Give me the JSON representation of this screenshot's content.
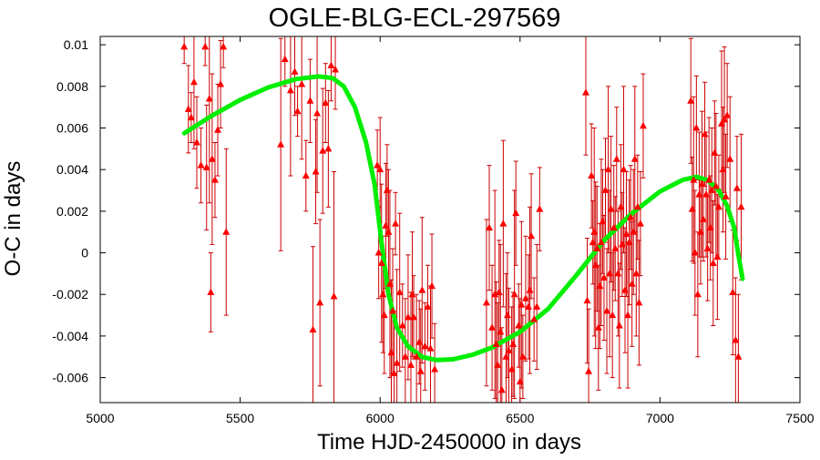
{
  "chart_data": {
    "type": "scatter",
    "title": "OGLE-BLG-ECL-297569",
    "xlabel": "Time HJD-2450000 in days",
    "ylabel": "O-C in days",
    "xlim": [
      5000,
      7500
    ],
    "ylim": [
      -0.0072,
      0.0104
    ],
    "x_ticks": [
      "5000",
      "5500",
      "6000",
      "6500",
      "7000",
      "7500"
    ],
    "y_ticks": [
      "-0.006",
      "-0.004",
      "-0.002",
      "0",
      "0.002",
      "0.004",
      "0.006",
      "0.008",
      "0.01"
    ],
    "grid": false,
    "colors": {
      "points": "#ff0000",
      "errorbars": "#cc0000",
      "fit": "#00ee00"
    },
    "series": [
      {
        "kind": "measurements",
        "points": [
          {
            "x": 5300,
            "y": 0.0099,
            "err": 0.0008
          },
          {
            "x": 5315,
            "y": 0.0069,
            "err": 0.0021
          },
          {
            "x": 5325,
            "y": 0.0065,
            "err": 0.0012
          },
          {
            "x": 5335,
            "y": 0.0082,
            "err": 0.0032
          },
          {
            "x": 5345,
            "y": 0.0053,
            "err": 0.0022
          },
          {
            "x": 5360,
            "y": 0.0042,
            "err": 0.0018
          },
          {
            "x": 5375,
            "y": 0.0099,
            "err": 0.0009
          },
          {
            "x": 5380,
            "y": 0.0041,
            "err": 0.003
          },
          {
            "x": 5390,
            "y": 0.0074,
            "err": 0.005
          },
          {
            "x": 5395,
            "y": -0.0019,
            "err": 0.0019
          },
          {
            "x": 5400,
            "y": 0.0045,
            "err": 0.0041
          },
          {
            "x": 5410,
            "y": 0.0035,
            "err": 0.0018
          },
          {
            "x": 5420,
            "y": 0.0059,
            "err": 0.0022
          },
          {
            "x": 5430,
            "y": 0.0081,
            "err": 0.0021
          },
          {
            "x": 5440,
            "y": 0.0099,
            "err": 0.001
          },
          {
            "x": 5450,
            "y": 0.001,
            "err": 0.004
          },
          {
            "x": 5645,
            "y": 0.0052,
            "err": 0.0051
          },
          {
            "x": 5660,
            "y": 0.0093,
            "err": 0.0013
          },
          {
            "x": 5680,
            "y": 0.0078,
            "err": 0.0041
          },
          {
            "x": 5695,
            "y": 0.0087,
            "err": 0.0021
          },
          {
            "x": 5705,
            "y": 0.0068,
            "err": 0.0012
          },
          {
            "x": 5720,
            "y": 0.0081,
            "err": 0.0036
          },
          {
            "x": 5735,
            "y": 0.0037,
            "err": 0.0017
          },
          {
            "x": 5750,
            "y": 0.0073,
            "err": 0.002
          },
          {
            "x": 5760,
            "y": -0.0037,
            "err": 0.004
          },
          {
            "x": 5770,
            "y": 0.0039,
            "err": 0.0025
          },
          {
            "x": 5775,
            "y": 0.0067,
            "err": 0.0038
          },
          {
            "x": 5785,
            "y": -0.0024,
            "err": 0.004
          },
          {
            "x": 5795,
            "y": 0.0049,
            "err": 0.003
          },
          {
            "x": 5805,
            "y": 0.0072,
            "err": 0.0019
          },
          {
            "x": 5815,
            "y": 0.005,
            "err": 0.0028
          },
          {
            "x": 5825,
            "y": 0.009,
            "err": 0.0017
          },
          {
            "x": 5835,
            "y": -0.0021,
            "err": 0.006
          },
          {
            "x": 5840,
            "y": 0.0088,
            "err": 0.0019
          },
          {
            "x": 5990,
            "y": 0.0042,
            "err": 0.0017
          },
          {
            "x": 5995,
            "y": 0.0,
            "err": 0.0022
          },
          {
            "x": 6000,
            "y": 0.004,
            "err": 0.0025
          },
          {
            "x": 6005,
            "y": -0.0005,
            "err": 0.0038
          },
          {
            "x": 6010,
            "y": -0.002,
            "err": 0.0028
          },
          {
            "x": 6015,
            "y": -0.003,
            "err": 0.0028
          },
          {
            "x": 6020,
            "y": 0.0013,
            "err": 0.003
          },
          {
            "x": 6025,
            "y": 0.003,
            "err": 0.0022
          },
          {
            "x": 6030,
            "y": 0.001,
            "err": 0.003
          },
          {
            "x": 6035,
            "y": -0.0015,
            "err": 0.0045
          },
          {
            "x": 6040,
            "y": -0.0048,
            "err": 0.0035
          },
          {
            "x": 6045,
            "y": -0.0028,
            "err": 0.003
          },
          {
            "x": 6050,
            "y": -0.0058,
            "err": 0.003
          },
          {
            "x": 6055,
            "y": 0.0014,
            "err": 0.0015
          },
          {
            "x": 6060,
            "y": -0.0053,
            "err": 0.0045
          },
          {
            "x": 6070,
            "y": -0.0019,
            "err": 0.0038
          },
          {
            "x": 6080,
            "y": -0.0035,
            "err": 0.002
          },
          {
            "x": 6090,
            "y": -0.005,
            "err": 0.0028
          },
          {
            "x": 6100,
            "y": -0.0031,
            "err": 0.003
          },
          {
            "x": 6110,
            "y": -0.0054,
            "err": 0.0035
          },
          {
            "x": 6115,
            "y": -0.002,
            "err": 0.003
          },
          {
            "x": 6120,
            "y": -0.0031,
            "err": 0.002
          },
          {
            "x": 6130,
            "y": -0.005,
            "err": 0.003
          },
          {
            "x": 6140,
            "y": -0.0043,
            "err": 0.002
          },
          {
            "x": 6145,
            "y": -0.0057,
            "err": 0.003
          },
          {
            "x": 6150,
            "y": -0.0018,
            "err": 0.0035
          },
          {
            "x": 6160,
            "y": -0.0045,
            "err": 0.0021
          },
          {
            "x": 6170,
            "y": -0.0026,
            "err": 0.002
          },
          {
            "x": 6180,
            "y": -0.0046,
            "err": 0.003
          },
          {
            "x": 6185,
            "y": -0.0016,
            "err": 0.0025
          },
          {
            "x": 6195,
            "y": -0.0056,
            "err": 0.0022
          },
          {
            "x": 6380,
            "y": -0.0024,
            "err": 0.004
          },
          {
            "x": 6390,
            "y": 0.0012,
            "err": 0.003
          },
          {
            "x": 6400,
            "y": -0.0036,
            "err": 0.003
          },
          {
            "x": 6410,
            "y": -0.002,
            "err": 0.005
          },
          {
            "x": 6415,
            "y": -0.0044,
            "err": 0.003
          },
          {
            "x": 6420,
            "y": -0.0054,
            "err": 0.003
          },
          {
            "x": 6425,
            "y": -0.0019,
            "err": 0.0025
          },
          {
            "x": 6430,
            "y": -0.0038,
            "err": 0.0042
          },
          {
            "x": 6435,
            "y": -0.0066,
            "err": 0.003
          },
          {
            "x": 6440,
            "y": 0.0014,
            "err": 0.004
          },
          {
            "x": 6450,
            "y": -0.005,
            "err": 0.004
          },
          {
            "x": 6455,
            "y": -0.003,
            "err": 0.003
          },
          {
            "x": 6460,
            "y": -0.0047,
            "err": 0.003
          },
          {
            "x": 6470,
            "y": -0.0056,
            "err": 0.003
          },
          {
            "x": 6475,
            "y": -0.0044,
            "err": 0.0025
          },
          {
            "x": 6480,
            "y": -0.002,
            "err": 0.005
          },
          {
            "x": 6485,
            "y": 0.0019,
            "err": 0.0025
          },
          {
            "x": 6495,
            "y": -0.0035,
            "err": 0.002
          },
          {
            "x": 6500,
            "y": -0.0062,
            "err": 0.004
          },
          {
            "x": 6505,
            "y": -0.0025,
            "err": 0.004
          },
          {
            "x": 6510,
            "y": -0.005,
            "err": 0.002
          },
          {
            "x": 6520,
            "y": -0.0022,
            "err": 0.003
          },
          {
            "x": 6530,
            "y": -0.0026,
            "err": 0.0025
          },
          {
            "x": 6535,
            "y": -0.0018,
            "err": 0.004
          },
          {
            "x": 6540,
            "y": 0.0008,
            "err": 0.003
          },
          {
            "x": 6550,
            "y": -0.0032,
            "err": 0.002
          },
          {
            "x": 6560,
            "y": -0.0026,
            "err": 0.003
          },
          {
            "x": 6570,
            "y": 0.0021,
            "err": 0.002
          },
          {
            "x": 6735,
            "y": 0.0077,
            "err": 0.003
          },
          {
            "x": 6740,
            "y": -0.0023,
            "err": 0.003
          },
          {
            "x": 6745,
            "y": -0.0057,
            "err": 0.003
          },
          {
            "x": 6755,
            "y": 0.0037,
            "err": 0.0025
          },
          {
            "x": 6760,
            "y": 0.0005,
            "err": 0.002
          },
          {
            "x": 6765,
            "y": 0.001,
            "err": 0.005
          },
          {
            "x": 6770,
            "y": -0.0006,
            "err": 0.004
          },
          {
            "x": 6775,
            "y": 0.0002,
            "err": 0.003
          },
          {
            "x": 6780,
            "y": -0.0036,
            "err": 0.003
          },
          {
            "x": 6785,
            "y": -0.0016,
            "err": 0.003
          },
          {
            "x": 6790,
            "y": 0.0005,
            "err": 0.004
          },
          {
            "x": 6795,
            "y": 0.0015,
            "err": 0.0025
          },
          {
            "x": 6800,
            "y": -0.0012,
            "err": 0.003
          },
          {
            "x": 6805,
            "y": 0.003,
            "err": 0.0025
          },
          {
            "x": 6810,
            "y": -0.0028,
            "err": 0.003
          },
          {
            "x": 6815,
            "y": 0.004,
            "err": 0.004
          },
          {
            "x": 6820,
            "y": -0.001,
            "err": 0.004
          },
          {
            "x": 6825,
            "y": 0.0021,
            "err": 0.0035
          },
          {
            "x": 6830,
            "y": -0.003,
            "err": 0.003
          },
          {
            "x": 6835,
            "y": 0.0012,
            "err": 0.003
          },
          {
            "x": 6840,
            "y": 0.0002,
            "err": 0.0025
          },
          {
            "x": 6845,
            "y": 0.0045,
            "err": 0.0025
          },
          {
            "x": 6850,
            "y": -0.001,
            "err": 0.003
          },
          {
            "x": 6855,
            "y": -0.0035,
            "err": 0.003
          },
          {
            "x": 6860,
            "y": 0.0022,
            "err": 0.003
          },
          {
            "x": 6865,
            "y": 0.0004,
            "err": 0.0025
          },
          {
            "x": 6870,
            "y": 0.004,
            "err": 0.004
          },
          {
            "x": 6875,
            "y": -0.0018,
            "err": 0.003
          },
          {
            "x": 6880,
            "y": 0.0009,
            "err": 0.003
          },
          {
            "x": 6885,
            "y": -0.003,
            "err": 0.0035
          },
          {
            "x": 6890,
            "y": 0.0005,
            "err": 0.003
          },
          {
            "x": 6895,
            "y": 0.0017,
            "err": 0.0025
          },
          {
            "x": 6900,
            "y": -0.0015,
            "err": 0.003
          },
          {
            "x": 6905,
            "y": 0.001,
            "err": 0.003
          },
          {
            "x": 6910,
            "y": 0.0045,
            "err": 0.0035
          },
          {
            "x": 6915,
            "y": -0.001,
            "err": 0.003
          },
          {
            "x": 6920,
            "y": 0.0022,
            "err": 0.0025
          },
          {
            "x": 6925,
            "y": -0.0024,
            "err": 0.003
          },
          {
            "x": 6930,
            "y": 0.0014,
            "err": 0.0025
          },
          {
            "x": 6940,
            "y": 0.0061,
            "err": 0.0025
          },
          {
            "x": 7110,
            "y": 0.0073,
            "err": 0.003
          },
          {
            "x": 7115,
            "y": 0.0021,
            "err": 0.0025
          },
          {
            "x": 7120,
            "y": 0.0035,
            "err": 0.004
          },
          {
            "x": 7125,
            "y": 0.0,
            "err": 0.003
          },
          {
            "x": 7130,
            "y": 0.006,
            "err": 0.0025
          },
          {
            "x": 7135,
            "y": -0.002,
            "err": 0.003
          },
          {
            "x": 7140,
            "y": 0.0028,
            "err": 0.003
          },
          {
            "x": 7145,
            "y": 0.001,
            "err": 0.0025
          },
          {
            "x": 7150,
            "y": 0.0033,
            "err": 0.0035
          },
          {
            "x": 7155,
            "y": 0.0016,
            "err": 0.002
          },
          {
            "x": 7160,
            "y": 0.0057,
            "err": 0.0025
          },
          {
            "x": 7165,
            "y": 0.0028,
            "err": 0.003
          },
          {
            "x": 7170,
            "y": 0.0002,
            "err": 0.0025
          },
          {
            "x": 7175,
            "y": 0.0035,
            "err": 0.003
          },
          {
            "x": 7180,
            "y": 0.0012,
            "err": 0.0025
          },
          {
            "x": 7185,
            "y": 0.003,
            "err": 0.003
          },
          {
            "x": 7190,
            "y": -0.0005,
            "err": 0.003
          },
          {
            "x": 7195,
            "y": 0.0048,
            "err": 0.0025
          },
          {
            "x": 7200,
            "y": 0.0032,
            "err": 0.0035
          },
          {
            "x": 7205,
            "y": -0.0002,
            "err": 0.003
          },
          {
            "x": 7210,
            "y": 0.0022,
            "err": 0.0025
          },
          {
            "x": 7220,
            "y": 0.0062,
            "err": 0.0035
          },
          {
            "x": 7225,
            "y": 0.004,
            "err": 0.003
          },
          {
            "x": 7230,
            "y": 0.0064,
            "err": 0.0035
          },
          {
            "x": 7235,
            "y": 0.0027,
            "err": 0.003
          },
          {
            "x": 7240,
            "y": 0.0066,
            "err": 0.0025
          },
          {
            "x": 7250,
            "y": 0.0045,
            "err": 0.003
          },
          {
            "x": 7260,
            "y": -0.0019,
            "err": 0.003
          },
          {
            "x": 7270,
            "y": -0.0042,
            "err": 0.003
          },
          {
            "x": 7275,
            "y": 0.0031,
            "err": 0.0025
          },
          {
            "x": 7280,
            "y": -0.005,
            "err": 0.003
          },
          {
            "x": 7290,
            "y": 0.0022,
            "err": 0.0035
          }
        ]
      },
      {
        "kind": "fit",
        "points": [
          {
            "x": 5300,
            "y": 0.00575
          },
          {
            "x": 5400,
            "y": 0.0066
          },
          {
            "x": 5500,
            "y": 0.00735
          },
          {
            "x": 5600,
            "y": 0.00795
          },
          {
            "x": 5700,
            "y": 0.00835
          },
          {
            "x": 5780,
            "y": 0.00848
          },
          {
            "x": 5830,
            "y": 0.0084
          },
          {
            "x": 5870,
            "y": 0.008
          },
          {
            "x": 5910,
            "y": 0.007
          },
          {
            "x": 5950,
            "y": 0.0053
          },
          {
            "x": 5980,
            "y": 0.0033
          },
          {
            "x": 6005,
            "y": 0.0005
          },
          {
            "x": 6030,
            "y": -0.002
          },
          {
            "x": 6060,
            "y": -0.0036
          },
          {
            "x": 6100,
            "y": -0.0045
          },
          {
            "x": 6150,
            "y": -0.005
          },
          {
            "x": 6200,
            "y": -0.00515
          },
          {
            "x": 6260,
            "y": -0.00512
          },
          {
            "x": 6330,
            "y": -0.0049
          },
          {
            "x": 6400,
            "y": -0.00455
          },
          {
            "x": 6500,
            "y": -0.0038
          },
          {
            "x": 6600,
            "y": -0.0027
          },
          {
            "x": 6700,
            "y": -0.0011
          },
          {
            "x": 6800,
            "y": 0.0006
          },
          {
            "x": 6900,
            "y": 0.0019
          },
          {
            "x": 7000,
            "y": 0.00295
          },
          {
            "x": 7080,
            "y": 0.0035
          },
          {
            "x": 7130,
            "y": 0.00365
          },
          {
            "x": 7170,
            "y": 0.0035
          },
          {
            "x": 7210,
            "y": 0.003
          },
          {
            "x": 7240,
            "y": 0.00225
          },
          {
            "x": 7265,
            "y": 0.0012
          },
          {
            "x": 7280,
            "y": -0.0001
          },
          {
            "x": 7295,
            "y": -0.00125
          }
        ]
      }
    ]
  }
}
